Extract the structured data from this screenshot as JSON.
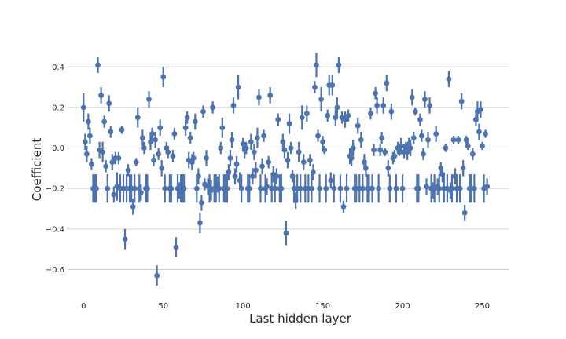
{
  "chart_data": {
    "type": "scatter",
    "xlabel": "Last hidden layer",
    "ylabel": "Coefficient",
    "xlim": [
      -10,
      267
    ],
    "ylim": [
      -0.73,
      0.56
    ],
    "xticks": [
      0,
      50,
      100,
      150,
      200,
      250
    ],
    "yticks": [
      -0.6,
      -0.4,
      -0.2,
      0.0,
      0.2,
      0.4
    ],
    "ytick_labels": [
      "−0.6",
      "−0.4",
      "−0.2",
      "0.0",
      "0.2",
      "0.4"
    ],
    "grid": "horizontal",
    "color": "#4c72b0",
    "points": [
      {
        "x": 0,
        "y": 0.2,
        "err": 0.07
      },
      {
        "x": 1,
        "y": 0.03,
        "err": 0.04
      },
      {
        "x": 2,
        "y": -0.03,
        "err": 0.04
      },
      {
        "x": 3,
        "y": 0.13,
        "err": 0.04
      },
      {
        "x": 4,
        "y": 0.06,
        "err": 0.04
      },
      {
        "x": 5,
        "y": -0.08,
        "err": 0.03
      },
      {
        "x": 6,
        "y": -0.2,
        "err": 0.07
      },
      {
        "x": 7,
        "y": -0.2,
        "err": 0.07
      },
      {
        "x": 8,
        "y": -0.2,
        "err": 0.07
      },
      {
        "x": 9,
        "y": 0.41,
        "err": 0.04
      },
      {
        "x": 10,
        "y": -0.01,
        "err": 0.04
      },
      {
        "x": 11,
        "y": 0.26,
        "err": 0.04
      },
      {
        "x": 12,
        "y": -0.02,
        "err": 0.05
      },
      {
        "x": 13,
        "y": 0.13,
        "err": 0.03
      },
      {
        "x": 14,
        "y": -0.09,
        "err": 0.03
      },
      {
        "x": 15,
        "y": -0.2,
        "err": 0.07
      },
      {
        "x": 16,
        "y": 0.22,
        "err": 0.04
      },
      {
        "x": 17,
        "y": 0.08,
        "err": 0.03
      },
      {
        "x": 18,
        "y": -0.07,
        "err": 0.04
      },
      {
        "x": 19,
        "y": -0.23,
        "err": 0.04
      },
      {
        "x": 20,
        "y": -0.05,
        "err": 0.03
      },
      {
        "x": 21,
        "y": -0.19,
        "err": 0.07
      },
      {
        "x": 22,
        "y": -0.05,
        "err": 0.03
      },
      {
        "x": 23,
        "y": -0.2,
        "err": 0.07
      },
      {
        "x": 24,
        "y": 0.09,
        "err": 0.02
      },
      {
        "x": 25,
        "y": -0.2,
        "err": 0.07
      },
      {
        "x": 26,
        "y": -0.45,
        "err": 0.05
      },
      {
        "x": 27,
        "y": -0.2,
        "err": 0.07
      },
      {
        "x": 28,
        "y": -0.11,
        "err": 0.03
      },
      {
        "x": 29,
        "y": -0.2,
        "err": 0.07
      },
      {
        "x": 30,
        "y": -0.2,
        "err": 0.07
      },
      {
        "x": 31,
        "y": -0.29,
        "err": 0.04
      },
      {
        "x": 32,
        "y": -0.2,
        "err": 0.07
      },
      {
        "x": 33,
        "y": -0.07,
        "err": 0.02
      },
      {
        "x": 34,
        "y": 0.15,
        "err": 0.05
      },
      {
        "x": 35,
        "y": -0.2,
        "err": 0.07
      },
      {
        "x": 36,
        "y": -0.22,
        "err": 0.04
      },
      {
        "x": 37,
        "y": 0.05,
        "err": 0.04
      },
      {
        "x": 38,
        "y": 0.0,
        "err": 0.03
      },
      {
        "x": 39,
        "y": -0.2,
        "err": 0.07
      },
      {
        "x": 40,
        "y": -0.2,
        "err": 0.07
      },
      {
        "x": 41,
        "y": 0.24,
        "err": 0.04
      },
      {
        "x": 42,
        "y": 0.03,
        "err": 0.04
      },
      {
        "x": 43,
        "y": 0.07,
        "err": 0.03
      },
      {
        "x": 44,
        "y": -0.06,
        "err": 0.03
      },
      {
        "x": 45,
        "y": 0.04,
        "err": 0.04
      },
      {
        "x": 46,
        "y": -0.63,
        "err": 0.05
      },
      {
        "x": 47,
        "y": -0.03,
        "err": 0.03
      },
      {
        "x": 48,
        "y": 0.1,
        "err": 0.04
      },
      {
        "x": 49,
        "y": -0.1,
        "err": 0.04
      },
      {
        "x": 50,
        "y": 0.35,
        "err": 0.05
      },
      {
        "x": 51,
        "y": -0.2,
        "err": 0.07
      },
      {
        "x": 52,
        "y": 0.0,
        "err": 0.03
      },
      {
        "x": 53,
        "y": -0.02,
        "err": 0.03
      },
      {
        "x": 54,
        "y": -0.2,
        "err": 0.07
      },
      {
        "x": 55,
        "y": -0.2,
        "err": 0.07
      },
      {
        "x": 56,
        "y": -0.04,
        "err": 0.03
      },
      {
        "x": 57,
        "y": 0.07,
        "err": 0.03
      },
      {
        "x": 58,
        "y": -0.49,
        "err": 0.05
      },
      {
        "x": 59,
        "y": -0.2,
        "err": 0.07
      },
      {
        "x": 60,
        "y": -0.21,
        "err": 0.04
      },
      {
        "x": 61,
        "y": -0.2,
        "err": 0.07
      },
      {
        "x": 62,
        "y": -0.2,
        "err": 0.07
      },
      {
        "x": 63,
        "y": -0.2,
        "err": 0.07
      },
      {
        "x": 64,
        "y": 0.1,
        "err": 0.04
      },
      {
        "x": 65,
        "y": 0.15,
        "err": 0.03
      },
      {
        "x": 66,
        "y": -0.06,
        "err": 0.04
      },
      {
        "x": 67,
        "y": 0.05,
        "err": 0.03
      },
      {
        "x": 68,
        "y": -0.07,
        "err": 0.04
      },
      {
        "x": 69,
        "y": -0.05,
        "err": 0.03
      },
      {
        "x": 70,
        "y": 0.13,
        "err": 0.04
      },
      {
        "x": 71,
        "y": -0.2,
        "err": 0.07
      },
      {
        "x": 72,
        "y": -0.14,
        "err": 0.04
      },
      {
        "x": 73,
        "y": -0.37,
        "err": 0.05
      },
      {
        "x": 74,
        "y": -0.27,
        "err": 0.04
      },
      {
        "x": 75,
        "y": 0.18,
        "err": 0.03
      },
      {
        "x": 76,
        "y": -0.18,
        "err": 0.03
      },
      {
        "x": 77,
        "y": -0.05,
        "err": 0.04
      },
      {
        "x": 78,
        "y": -0.19,
        "err": 0.04
      },
      {
        "x": 79,
        "y": -0.2,
        "err": 0.07
      },
      {
        "x": 80,
        "y": -0.21,
        "err": 0.05
      },
      {
        "x": 81,
        "y": 0.2,
        "err": 0.03
      },
      {
        "x": 82,
        "y": -0.2,
        "err": 0.07
      },
      {
        "x": 83,
        "y": -0.2,
        "err": 0.07
      },
      {
        "x": 84,
        "y": -0.18,
        "err": 0.04
      },
      {
        "x": 85,
        "y": -0.2,
        "err": 0.07
      },
      {
        "x": 86,
        "y": 0.0,
        "err": 0.03
      },
      {
        "x": 87,
        "y": 0.1,
        "err": 0.05
      },
      {
        "x": 88,
        "y": -0.2,
        "err": 0.07
      },
      {
        "x": 89,
        "y": -0.2,
        "err": 0.07
      },
      {
        "x": 90,
        "y": -0.2,
        "err": 0.07
      },
      {
        "x": 91,
        "y": -0.12,
        "err": 0.04
      },
      {
        "x": 92,
        "y": -0.05,
        "err": 0.04
      },
      {
        "x": 93,
        "y": 0.04,
        "err": 0.04
      },
      {
        "x": 94,
        "y": 0.21,
        "err": 0.04
      },
      {
        "x": 95,
        "y": -0.14,
        "err": 0.04
      },
      {
        "x": 96,
        "y": -0.08,
        "err": 0.04
      },
      {
        "x": 97,
        "y": 0.3,
        "err": 0.06
      },
      {
        "x": 98,
        "y": -0.16,
        "err": 0.04
      },
      {
        "x": 99,
        "y": -0.2,
        "err": 0.07
      },
      {
        "x": 100,
        "y": 0.02,
        "err": 0.03
      },
      {
        "x": 101,
        "y": -0.01,
        "err": 0.04
      },
      {
        "x": 102,
        "y": 0.0,
        "err": 0.03
      },
      {
        "x": 103,
        "y": -0.2,
        "err": 0.07
      },
      {
        "x": 104,
        "y": -0.2,
        "err": 0.07
      },
      {
        "x": 105,
        "y": 0.03,
        "err": 0.04
      },
      {
        "x": 106,
        "y": -0.14,
        "err": 0.04
      },
      {
        "x": 107,
        "y": -0.02,
        "err": 0.04
      },
      {
        "x": 108,
        "y": -0.11,
        "err": 0.04
      },
      {
        "x": 109,
        "y": 0.05,
        "err": 0.05
      },
      {
        "x": 110,
        "y": 0.25,
        "err": 0.04
      },
      {
        "x": 111,
        "y": -0.2,
        "err": 0.07
      },
      {
        "x": 112,
        "y": -0.09,
        "err": 0.04
      },
      {
        "x": 113,
        "y": 0.06,
        "err": 0.03
      },
      {
        "x": 114,
        "y": -0.2,
        "err": 0.07
      },
      {
        "x": 115,
        "y": -0.19,
        "err": 0.04
      },
      {
        "x": 116,
        "y": -0.07,
        "err": 0.03
      },
      {
        "x": 117,
        "y": 0.26,
        "err": 0.04
      },
      {
        "x": 118,
        "y": -0.2,
        "err": 0.07
      },
      {
        "x": 119,
        "y": -0.13,
        "err": 0.04
      },
      {
        "x": 120,
        "y": -0.2,
        "err": 0.07
      },
      {
        "x": 121,
        "y": -0.14,
        "err": 0.04
      },
      {
        "x": 122,
        "y": 0.14,
        "err": 0.03
      },
      {
        "x": 123,
        "y": -0.2,
        "err": 0.07
      },
      {
        "x": 124,
        "y": -0.2,
        "err": 0.07
      },
      {
        "x": 125,
        "y": 0.03,
        "err": 0.04
      },
      {
        "x": 126,
        "y": -0.01,
        "err": 0.04
      },
      {
        "x": 127,
        "y": -0.42,
        "err": 0.06
      },
      {
        "x": 128,
        "y": -0.06,
        "err": 0.04
      },
      {
        "x": 129,
        "y": 0.12,
        "err": 0.05
      },
      {
        "x": 130,
        "y": 0.0,
        "err": 0.03
      },
      {
        "x": 131,
        "y": -0.14,
        "err": 0.03
      },
      {
        "x": 132,
        "y": -0.2,
        "err": 0.07
      },
      {
        "x": 133,
        "y": -0.26,
        "err": 0.04
      },
      {
        "x": 134,
        "y": -0.2,
        "err": 0.07
      },
      {
        "x": 135,
        "y": -0.02,
        "err": 0.05
      },
      {
        "x": 136,
        "y": -0.2,
        "err": 0.07
      },
      {
        "x": 137,
        "y": 0.15,
        "err": 0.06
      },
      {
        "x": 138,
        "y": -0.07,
        "err": 0.04
      },
      {
        "x": 139,
        "y": -0.2,
        "err": 0.07
      },
      {
        "x": 140,
        "y": 0.17,
        "err": 0.04
      },
      {
        "x": 141,
        "y": -0.2,
        "err": 0.07
      },
      {
        "x": 142,
        "y": -0.06,
        "err": 0.03
      },
      {
        "x": 143,
        "y": -0.2,
        "err": 0.07
      },
      {
        "x": 144,
        "y": -0.12,
        "err": 0.04
      },
      {
        "x": 145,
        "y": 0.3,
        "err": 0.03
      },
      {
        "x": 146,
        "y": 0.41,
        "err": 0.06
      },
      {
        "x": 147,
        "y": 0.06,
        "err": 0.03
      },
      {
        "x": 148,
        "y": -0.2,
        "err": 0.07
      },
      {
        "x": 149,
        "y": 0.24,
        "err": 0.06
      },
      {
        "x": 150,
        "y": 0.03,
        "err": 0.03
      },
      {
        "x": 151,
        "y": -0.01,
        "err": 0.02
      },
      {
        "x": 152,
        "y": -0.2,
        "err": 0.07
      },
      {
        "x": 153,
        "y": 0.16,
        "err": 0.03
      },
      {
        "x": 154,
        "y": 0.31,
        "err": 0.05
      },
      {
        "x": 155,
        "y": -0.16,
        "err": 0.04
      },
      {
        "x": 156,
        "y": 0.31,
        "err": 0.05
      },
      {
        "x": 157,
        "y": -0.2,
        "err": 0.07
      },
      {
        "x": 158,
        "y": 0.15,
        "err": 0.04
      },
      {
        "x": 159,
        "y": 0.2,
        "err": 0.05
      },
      {
        "x": 160,
        "y": 0.41,
        "err": 0.04
      },
      {
        "x": 161,
        "y": -0.2,
        "err": 0.07
      },
      {
        "x": 162,
        "y": 0.15,
        "err": 0.03
      },
      {
        "x": 163,
        "y": -0.29,
        "err": 0.03
      },
      {
        "x": 164,
        "y": 0.14,
        "err": 0.04
      },
      {
        "x": 165,
        "y": -0.2,
        "err": 0.07
      },
      {
        "x": 166,
        "y": 0.16,
        "err": 0.03
      },
      {
        "x": 167,
        "y": -0.04,
        "err": 0.04
      },
      {
        "x": 168,
        "y": -0.05,
        "err": 0.04
      },
      {
        "x": 169,
        "y": 0.0,
        "err": 0.04
      },
      {
        "x": 170,
        "y": -0.2,
        "err": 0.07
      },
      {
        "x": 171,
        "y": -0.2,
        "err": 0.07
      },
      {
        "x": 172,
        "y": 0.11,
        "err": 0.04
      },
      {
        "x": 173,
        "y": -0.2,
        "err": 0.07
      },
      {
        "x": 174,
        "y": 0.04,
        "err": 0.04
      },
      {
        "x": 175,
        "y": -0.2,
        "err": 0.07
      },
      {
        "x": 176,
        "y": -0.07,
        "err": 0.04
      },
      {
        "x": 177,
        "y": -0.1,
        "err": 0.04
      },
      {
        "x": 178,
        "y": -0.2,
        "err": 0.07
      },
      {
        "x": 179,
        "y": -0.2,
        "err": 0.07
      },
      {
        "x": 180,
        "y": 0.17,
        "err": 0.03
      },
      {
        "x": 181,
        "y": -0.2,
        "err": 0.07
      },
      {
        "x": 182,
        "y": -0.01,
        "err": 0.03
      },
      {
        "x": 183,
        "y": 0.27,
        "err": 0.03
      },
      {
        "x": 184,
        "y": 0.21,
        "err": 0.04
      },
      {
        "x": 185,
        "y": -0.2,
        "err": 0.07
      },
      {
        "x": 186,
        "y": -0.01,
        "err": 0.03
      },
      {
        "x": 187,
        "y": 0.05,
        "err": 0.03
      },
      {
        "x": 188,
        "y": 0.21,
        "err": 0.04
      },
      {
        "x": 189,
        "y": -0.02,
        "err": 0.02
      },
      {
        "x": 190,
        "y": 0.32,
        "err": 0.04
      },
      {
        "x": 191,
        "y": -0.1,
        "err": 0.04
      },
      {
        "x": 192,
        "y": -0.2,
        "err": 0.07
      },
      {
        "x": 193,
        "y": 0.18,
        "err": 0.04
      },
      {
        "x": 194,
        "y": -0.05,
        "err": 0.03
      },
      {
        "x": 195,
        "y": -0.04,
        "err": 0.03
      },
      {
        "x": 196,
        "y": -0.2,
        "err": 0.07
      },
      {
        "x": 197,
        "y": 0.0,
        "err": 0.03
      },
      {
        "x": 198,
        "y": -0.02,
        "err": 0.02
      },
      {
        "x": 199,
        "y": 0.01,
        "err": 0.04
      },
      {
        "x": 200,
        "y": -0.2,
        "err": 0.07
      },
      {
        "x": 201,
        "y": -0.02,
        "err": 0.03
      },
      {
        "x": 202,
        "y": 0.01,
        "err": 0.02
      },
      {
        "x": 203,
        "y": -0.02,
        "err": 0.04
      },
      {
        "x": 204,
        "y": 0.02,
        "err": 0.03
      },
      {
        "x": 205,
        "y": 0.0,
        "err": 0.04
      },
      {
        "x": 206,
        "y": 0.25,
        "err": 0.04
      },
      {
        "x": 207,
        "y": 0.05,
        "err": 0.03
      },
      {
        "x": 208,
        "y": 0.18,
        "err": 0.02
      },
      {
        "x": 209,
        "y": -0.2,
        "err": 0.07
      },
      {
        "x": 210,
        "y": -0.2,
        "err": 0.07
      },
      {
        "x": 211,
        "y": 0.14,
        "err": 0.03
      },
      {
        "x": 212,
        "y": 0.06,
        "err": 0.03
      },
      {
        "x": 213,
        "y": -0.03,
        "err": 0.03
      },
      {
        "x": 214,
        "y": 0.24,
        "err": 0.04
      },
      {
        "x": 215,
        "y": -0.19,
        "err": 0.04
      },
      {
        "x": 216,
        "y": 0.04,
        "err": 0.04
      },
      {
        "x": 217,
        "y": 0.21,
        "err": 0.04
      },
      {
        "x": 218,
        "y": -0.2,
        "err": 0.07
      },
      {
        "x": 219,
        "y": -0.21,
        "err": 0.04
      },
      {
        "x": 220,
        "y": -0.2,
        "err": 0.07
      },
      {
        "x": 221,
        "y": 0.07,
        "err": 0.04
      },
      {
        "x": 222,
        "y": -0.19,
        "err": 0.04
      },
      {
        "x": 223,
        "y": -0.2,
        "err": 0.07
      },
      {
        "x": 224,
        "y": -0.1,
        "err": 0.03
      },
      {
        "x": 225,
        "y": -0.13,
        "err": 0.04
      },
      {
        "x": 226,
        "y": -0.2,
        "err": 0.07
      },
      {
        "x": 227,
        "y": 0.0,
        "err": 0.02
      },
      {
        "x": 228,
        "y": -0.2,
        "err": 0.07
      },
      {
        "x": 229,
        "y": 0.34,
        "err": 0.04
      },
      {
        "x": 230,
        "y": -0.21,
        "err": 0.04
      },
      {
        "x": 231,
        "y": -0.2,
        "err": 0.07
      },
      {
        "x": 232,
        "y": 0.04,
        "err": 0.02
      },
      {
        "x": 233,
        "y": -0.14,
        "err": 0.04
      },
      {
        "x": 234,
        "y": -0.2,
        "err": 0.07
      },
      {
        "x": 235,
        "y": 0.04,
        "err": 0.02
      },
      {
        "x": 236,
        "y": -0.2,
        "err": 0.07
      },
      {
        "x": 237,
        "y": 0.23,
        "err": 0.04
      },
      {
        "x": 238,
        "y": -0.1,
        "err": 0.04
      },
      {
        "x": 239,
        "y": -0.32,
        "err": 0.04
      },
      {
        "x": 240,
        "y": 0.04,
        "err": 0.02
      },
      {
        "x": 241,
        "y": 0.01,
        "err": 0.02
      },
      {
        "x": 242,
        "y": -0.2,
        "err": 0.07
      },
      {
        "x": 243,
        "y": -0.2,
        "err": 0.07
      },
      {
        "x": 244,
        "y": -0.03,
        "err": 0.03
      },
      {
        "x": 245,
        "y": -0.2,
        "err": 0.07
      },
      {
        "x": 246,
        "y": 0.14,
        "err": 0.03
      },
      {
        "x": 247,
        "y": 0.18,
        "err": 0.05
      },
      {
        "x": 248,
        "y": 0.08,
        "err": 0.04
      },
      {
        "x": 249,
        "y": 0.19,
        "err": 0.04
      },
      {
        "x": 250,
        "y": 0.01,
        "err": 0.02
      },
      {
        "x": 251,
        "y": -0.2,
        "err": 0.07
      },
      {
        "x": 252,
        "y": 0.07,
        "err": 0.02
      },
      {
        "x": 253,
        "y": -0.19,
        "err": 0.04
      }
    ]
  }
}
